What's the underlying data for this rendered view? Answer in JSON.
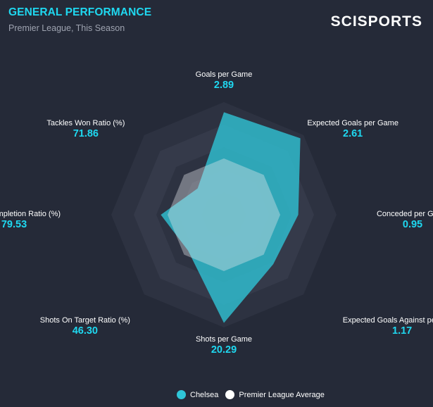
{
  "header": {
    "title": "GENERAL PERFORMANCE",
    "subtitle": "Premier League, This Season",
    "brand": "SCISPORTS"
  },
  "colors": {
    "team": "#2fc6d8",
    "average": "#e8e8ec",
    "value_text": "#1fd8f0",
    "background": "#252a38"
  },
  "chart_data": {
    "type": "radar",
    "axes": [
      {
        "label": "Goals per Game",
        "value": "2.89"
      },
      {
        "label": "Expected Goals per Game",
        "value": "2.61"
      },
      {
        "label": "Conceded per Game",
        "value": "0.95"
      },
      {
        "label": "Expected Goals Against per Game",
        "value": "1.17"
      },
      {
        "label": "Shots per Game",
        "value": "20.29"
      },
      {
        "label": "Shots On Target Ratio (%)",
        "value": "46.30"
      },
      {
        "label": "Pass Completion Ratio (%)",
        "value": "79.53"
      },
      {
        "label": "Tackles Won Ratio (%)",
        "value": "71.86"
      }
    ],
    "rings": 5,
    "series": [
      {
        "name": "Chelsea",
        "normalized": [
          0.91,
          0.96,
          0.66,
          0.62,
          0.96,
          0.45,
          0.56,
          0.33
        ]
      },
      {
        "name": "Premier League Average",
        "normalized": [
          0.5,
          0.5,
          0.5,
          0.5,
          0.5,
          0.5,
          0.5,
          0.5
        ]
      }
    ],
    "legend": [
      {
        "name": "Chelsea"
      },
      {
        "name": "Premier League Average"
      }
    ]
  }
}
